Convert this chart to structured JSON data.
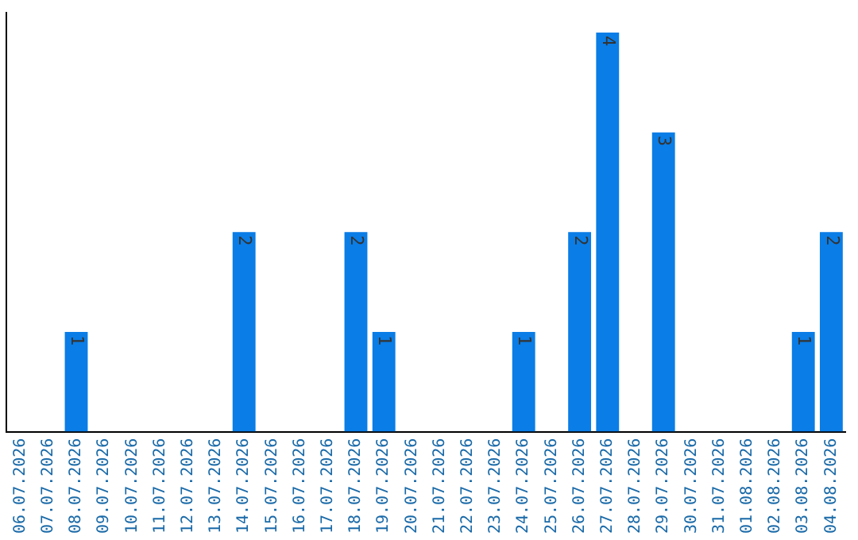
{
  "chart_data": {
    "type": "bar",
    "categories": [
      "06.07.2026",
      "07.07.2026",
      "08.07.2026",
      "09.07.2026",
      "10.07.2026",
      "11.07.2026",
      "12.07.2026",
      "13.07.2026",
      "14.07.2026",
      "15.07.2026",
      "16.07.2026",
      "17.07.2026",
      "18.07.2026",
      "19.07.2026",
      "20.07.2026",
      "21.07.2026",
      "22.07.2026",
      "23.07.2026",
      "24.07.2026",
      "25.07.2026",
      "26.07.2026",
      "27.07.2026",
      "28.07.2026",
      "29.07.2026",
      "30.07.2026",
      "31.07.2026",
      "01.08.2026",
      "02.08.2026",
      "03.08.2026",
      "04.08.2026"
    ],
    "values": [
      0,
      0,
      1,
      0,
      0,
      0,
      0,
      0,
      2,
      0,
      0,
      0,
      2,
      1,
      0,
      0,
      0,
      0,
      1,
      0,
      2,
      4,
      0,
      3,
      0,
      0,
      0,
      0,
      1,
      2
    ],
    "value_labels": [
      null,
      null,
      "1",
      null,
      null,
      null,
      null,
      null,
      "2",
      null,
      null,
      null,
      "2",
      "1",
      null,
      null,
      null,
      null,
      "1",
      null,
      "2",
      "4",
      null,
      "3",
      null,
      null,
      null,
      null,
      "1",
      "2"
    ],
    "color": "#0a7de6",
    "ylim": [
      0,
      4.2
    ],
    "tick_labels": "x",
    "grid": false,
    "legend": false
  }
}
